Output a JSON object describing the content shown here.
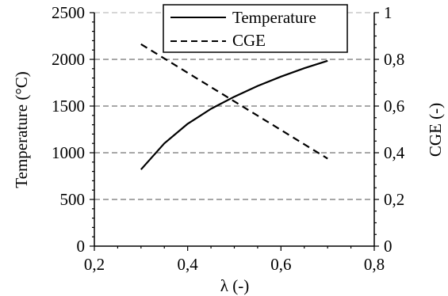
{
  "chart_data": {
    "type": "line",
    "xlabel": "λ (-)",
    "ylabel_left": "Temperature (°C)",
    "ylabel_right": "CGE (-)",
    "xlim": [
      0.2,
      0.8
    ],
    "ylim_left": [
      0,
      2500
    ],
    "ylim_right": [
      0,
      1
    ],
    "x_ticks": [
      0.2,
      0.4,
      0.6,
      0.8
    ],
    "x_tick_labels": [
      "0,2",
      "0,4",
      "0,6",
      "0,8"
    ],
    "y_left_ticks": [
      0,
      500,
      1000,
      1500,
      2000,
      2500
    ],
    "y_left_tick_labels": [
      "0",
      "500",
      "1000",
      "1500",
      "2000",
      "2500"
    ],
    "y_right_ticks": [
      0,
      0.2,
      0.4,
      0.6,
      0.8,
      1
    ],
    "y_right_tick_labels": [
      "0",
      "0,2",
      "0,4",
      "0,6",
      "0,8",
      "1"
    ],
    "grid": "horizontal dashed",
    "legend_position": "top-right",
    "series": [
      {
        "name": "Temperature",
        "axis": "left",
        "style": "solid",
        "color": "#000000",
        "x": [
          0.3,
          0.35,
          0.4,
          0.45,
          0.5,
          0.55,
          0.6,
          0.65,
          0.7
        ],
        "y": [
          820,
          1100,
          1310,
          1470,
          1600,
          1715,
          1815,
          1905,
          1985
        ]
      },
      {
        "name": "CGE",
        "axis": "right",
        "style": "dashed",
        "color": "#000000",
        "x": [
          0.3,
          0.7
        ],
        "y": [
          0.865,
          0.375
        ]
      }
    ]
  }
}
